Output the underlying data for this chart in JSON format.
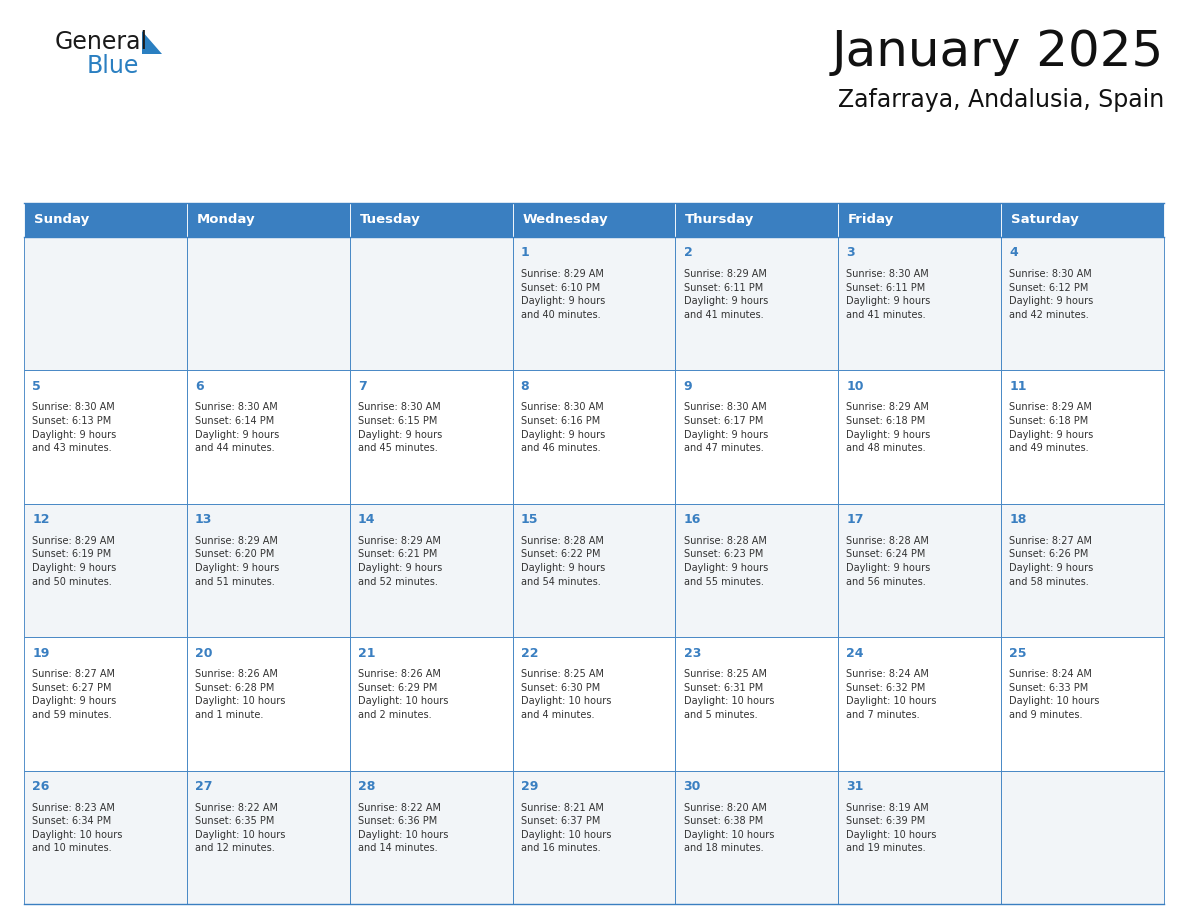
{
  "title": "January 2025",
  "subtitle": "Zafarraya, Andalusia, Spain",
  "header_color": "#3a7fc1",
  "header_text_color": "#ffffff",
  "border_color": "#3a7fc1",
  "day_num_color": "#3a7fc1",
  "text_color": "#333333",
  "row_alt_bg": "#f2f5f8",
  "row_bg": "#ffffff",
  "days_of_week": [
    "Sunday",
    "Monday",
    "Tuesday",
    "Wednesday",
    "Thursday",
    "Friday",
    "Saturday"
  ],
  "weeks": [
    [
      {
        "day": "",
        "info": ""
      },
      {
        "day": "",
        "info": ""
      },
      {
        "day": "",
        "info": ""
      },
      {
        "day": "1",
        "info": "Sunrise: 8:29 AM\nSunset: 6:10 PM\nDaylight: 9 hours\nand 40 minutes."
      },
      {
        "day": "2",
        "info": "Sunrise: 8:29 AM\nSunset: 6:11 PM\nDaylight: 9 hours\nand 41 minutes."
      },
      {
        "day": "3",
        "info": "Sunrise: 8:30 AM\nSunset: 6:11 PM\nDaylight: 9 hours\nand 41 minutes."
      },
      {
        "day": "4",
        "info": "Sunrise: 8:30 AM\nSunset: 6:12 PM\nDaylight: 9 hours\nand 42 minutes."
      }
    ],
    [
      {
        "day": "5",
        "info": "Sunrise: 8:30 AM\nSunset: 6:13 PM\nDaylight: 9 hours\nand 43 minutes."
      },
      {
        "day": "6",
        "info": "Sunrise: 8:30 AM\nSunset: 6:14 PM\nDaylight: 9 hours\nand 44 minutes."
      },
      {
        "day": "7",
        "info": "Sunrise: 8:30 AM\nSunset: 6:15 PM\nDaylight: 9 hours\nand 45 minutes."
      },
      {
        "day": "8",
        "info": "Sunrise: 8:30 AM\nSunset: 6:16 PM\nDaylight: 9 hours\nand 46 minutes."
      },
      {
        "day": "9",
        "info": "Sunrise: 8:30 AM\nSunset: 6:17 PM\nDaylight: 9 hours\nand 47 minutes."
      },
      {
        "day": "10",
        "info": "Sunrise: 8:29 AM\nSunset: 6:18 PM\nDaylight: 9 hours\nand 48 minutes."
      },
      {
        "day": "11",
        "info": "Sunrise: 8:29 AM\nSunset: 6:18 PM\nDaylight: 9 hours\nand 49 minutes."
      }
    ],
    [
      {
        "day": "12",
        "info": "Sunrise: 8:29 AM\nSunset: 6:19 PM\nDaylight: 9 hours\nand 50 minutes."
      },
      {
        "day": "13",
        "info": "Sunrise: 8:29 AM\nSunset: 6:20 PM\nDaylight: 9 hours\nand 51 minutes."
      },
      {
        "day": "14",
        "info": "Sunrise: 8:29 AM\nSunset: 6:21 PM\nDaylight: 9 hours\nand 52 minutes."
      },
      {
        "day": "15",
        "info": "Sunrise: 8:28 AM\nSunset: 6:22 PM\nDaylight: 9 hours\nand 54 minutes."
      },
      {
        "day": "16",
        "info": "Sunrise: 8:28 AM\nSunset: 6:23 PM\nDaylight: 9 hours\nand 55 minutes."
      },
      {
        "day": "17",
        "info": "Sunrise: 8:28 AM\nSunset: 6:24 PM\nDaylight: 9 hours\nand 56 minutes."
      },
      {
        "day": "18",
        "info": "Sunrise: 8:27 AM\nSunset: 6:26 PM\nDaylight: 9 hours\nand 58 minutes."
      }
    ],
    [
      {
        "day": "19",
        "info": "Sunrise: 8:27 AM\nSunset: 6:27 PM\nDaylight: 9 hours\nand 59 minutes."
      },
      {
        "day": "20",
        "info": "Sunrise: 8:26 AM\nSunset: 6:28 PM\nDaylight: 10 hours\nand 1 minute."
      },
      {
        "day": "21",
        "info": "Sunrise: 8:26 AM\nSunset: 6:29 PM\nDaylight: 10 hours\nand 2 minutes."
      },
      {
        "day": "22",
        "info": "Sunrise: 8:25 AM\nSunset: 6:30 PM\nDaylight: 10 hours\nand 4 minutes."
      },
      {
        "day": "23",
        "info": "Sunrise: 8:25 AM\nSunset: 6:31 PM\nDaylight: 10 hours\nand 5 minutes."
      },
      {
        "day": "24",
        "info": "Sunrise: 8:24 AM\nSunset: 6:32 PM\nDaylight: 10 hours\nand 7 minutes."
      },
      {
        "day": "25",
        "info": "Sunrise: 8:24 AM\nSunset: 6:33 PM\nDaylight: 10 hours\nand 9 minutes."
      }
    ],
    [
      {
        "day": "26",
        "info": "Sunrise: 8:23 AM\nSunset: 6:34 PM\nDaylight: 10 hours\nand 10 minutes."
      },
      {
        "day": "27",
        "info": "Sunrise: 8:22 AM\nSunset: 6:35 PM\nDaylight: 10 hours\nand 12 minutes."
      },
      {
        "day": "28",
        "info": "Sunrise: 8:22 AM\nSunset: 6:36 PM\nDaylight: 10 hours\nand 14 minutes."
      },
      {
        "day": "29",
        "info": "Sunrise: 8:21 AM\nSunset: 6:37 PM\nDaylight: 10 hours\nand 16 minutes."
      },
      {
        "day": "30",
        "info": "Sunrise: 8:20 AM\nSunset: 6:38 PM\nDaylight: 10 hours\nand 18 minutes."
      },
      {
        "day": "31",
        "info": "Sunrise: 8:19 AM\nSunset: 6:39 PM\nDaylight: 10 hours\nand 19 minutes."
      },
      {
        "day": "",
        "info": ""
      }
    ]
  ],
  "logo_general_color": "#1a1a1a",
  "logo_blue_color": "#2a7fc1",
  "fig_width": 11.88,
  "fig_height": 9.18,
  "dpi": 100
}
